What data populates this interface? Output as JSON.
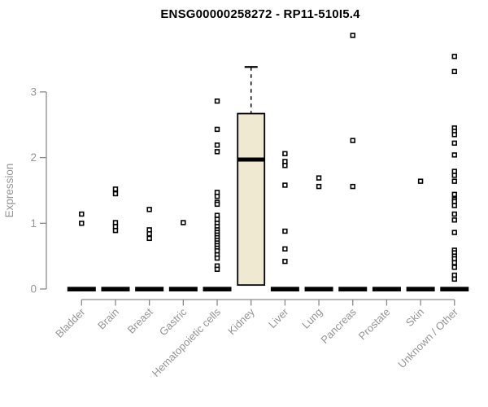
{
  "header": {
    "title": "ENSG00000258272 - RP11-510I5.4"
  },
  "chart_data": {
    "type": "boxplot",
    "title": "ENSG00000258272 - RP11-510I5.4",
    "xlabel": "",
    "ylabel": "Expression",
    "ylim": [
      0,
      3.9
    ],
    "yticks": [
      0,
      1,
      2,
      3
    ],
    "grid": false,
    "legend": "none",
    "categories": [
      "Bladder",
      "Brain",
      "Breast",
      "Gastric",
      "Hematopoietic cells",
      "Kidney",
      "Liver",
      "Lung",
      "Pancreas",
      "Prostate",
      "Skin",
      "Unknown / Other"
    ],
    "series": [
      {
        "name": "Bladder",
        "collapsed": true,
        "box": {
          "q1": 0,
          "median": 0,
          "q3": 0,
          "whisker_low": 0,
          "whisker_high": 0
        },
        "outliers": [
          1.14,
          1.0
        ]
      },
      {
        "name": "Brain",
        "collapsed": true,
        "box": {
          "q1": 0,
          "median": 0,
          "q3": 0,
          "whisker_low": 0,
          "whisker_high": 0
        },
        "outliers": [
          1.52,
          1.45,
          1.01,
          0.95,
          0.89
        ]
      },
      {
        "name": "Breast",
        "collapsed": true,
        "box": {
          "q1": 0,
          "median": 0,
          "q3": 0,
          "whisker_low": 0,
          "whisker_high": 0
        },
        "outliers": [
          1.21,
          0.9,
          0.84,
          0.77
        ]
      },
      {
        "name": "Gastric",
        "collapsed": true,
        "box": {
          "q1": 0,
          "median": 0,
          "q3": 0,
          "whisker_low": 0,
          "whisker_high": 0
        },
        "outliers": [
          1.01
        ]
      },
      {
        "name": "Hematopoietic cells",
        "collapsed": true,
        "box": {
          "q1": 0,
          "median": 0,
          "q3": 0,
          "whisker_low": 0,
          "whisker_high": 0
        },
        "outliers": [
          2.86,
          2.43,
          2.19,
          2.09,
          1.47,
          1.41,
          1.32,
          1.29,
          1.12,
          1.06,
          1.0,
          0.95,
          0.9,
          0.86,
          0.82,
          0.78,
          0.74,
          0.7,
          0.66,
          0.62,
          0.58,
          0.52,
          0.47,
          0.35,
          0.3
        ]
      },
      {
        "name": "Kidney",
        "collapsed": false,
        "box": {
          "q1": 0.06,
          "median": 1.97,
          "q3": 2.67,
          "whisker_low": 0.06,
          "whisker_high": 3.38
        },
        "outliers": []
      },
      {
        "name": "Liver",
        "collapsed": true,
        "box": {
          "q1": 0,
          "median": 0,
          "q3": 0,
          "whisker_low": 0,
          "whisker_high": 0
        },
        "outliers": [
          2.06,
          1.94,
          1.88,
          1.58,
          0.88,
          0.61,
          0.42
        ]
      },
      {
        "name": "Lung",
        "collapsed": true,
        "box": {
          "q1": 0,
          "median": 0,
          "q3": 0,
          "whisker_low": 0,
          "whisker_high": 0
        },
        "outliers": [
          1.69,
          1.56
        ]
      },
      {
        "name": "Pancreas",
        "collapsed": true,
        "box": {
          "q1": 0,
          "median": 0,
          "q3": 0,
          "whisker_low": 0,
          "whisker_high": 0
        },
        "outliers": [
          3.86,
          2.26,
          1.56
        ]
      },
      {
        "name": "Prostate",
        "collapsed": true,
        "box": {
          "q1": 0,
          "median": 0,
          "q3": 0,
          "whisker_low": 0,
          "whisker_high": 0
        },
        "outliers": []
      },
      {
        "name": "Skin",
        "collapsed": true,
        "box": {
          "q1": 0,
          "median": 0,
          "q3": 0,
          "whisker_low": 0,
          "whisker_high": 0
        },
        "outliers": [
          1.64
        ]
      },
      {
        "name": "Unknown / Other",
        "collapsed": true,
        "box": {
          "q1": 0,
          "median": 0,
          "q3": 0,
          "whisker_low": 0,
          "whisker_high": 0
        },
        "outliers": [
          3.54,
          3.31,
          2.45,
          2.4,
          2.35,
          2.22,
          2.04,
          1.79,
          1.73,
          1.64,
          1.44,
          1.36,
          1.33,
          1.27,
          1.14,
          1.05,
          0.86,
          0.59,
          0.55,
          0.5,
          0.46,
          0.4,
          0.33,
          0.21,
          0.15
        ]
      }
    ],
    "colors": {
      "box_fill": "#F0E9D1",
      "box_stroke": "#000000",
      "median": "#000000",
      "zero_bar": "#000000",
      "outlier_stroke": "#000000",
      "outlier_fill": "#ffffff",
      "axis_line": "#8a8a8a",
      "tick_text": "#949494",
      "title_text": "#000000"
    }
  }
}
